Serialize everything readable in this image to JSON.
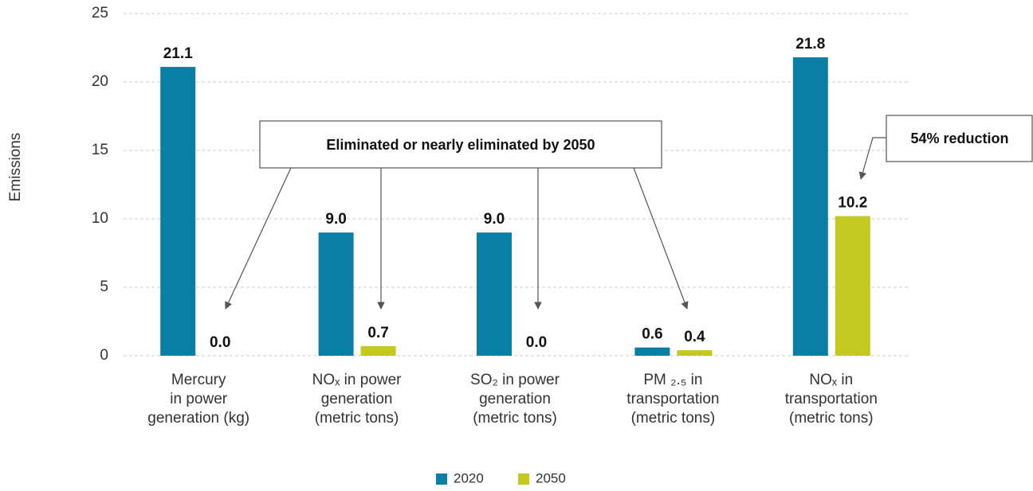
{
  "chart_data": {
    "type": "bar",
    "y_label": "Emissions",
    "categories": [
      [
        "Mercury",
        "in power",
        "generation (kg)"
      ],
      [
        "NOₓ in power",
        "generation",
        "(metric tons)"
      ],
      [
        "SO₂ in power",
        "generation",
        "(metric tons)"
      ],
      [
        "PM ₂.₅ in",
        "transportation",
        "(metric tons)"
      ],
      [
        "NOₓ in",
        "transportation",
        "(metric tons)"
      ]
    ],
    "series": [
      {
        "name": "2020",
        "color": "#0a7ea4",
        "values": [
          21.1,
          9.0,
          9.0,
          0.6,
          21.8
        ],
        "value_labels": [
          "21.1",
          "9.0",
          "9.0",
          "0.6",
          "21.8"
        ]
      },
      {
        "name": "2050",
        "color": "#c3c920",
        "values": [
          0.0,
          0.7,
          0.0,
          0.4,
          10.2
        ],
        "value_labels": [
          "0.0",
          "0.7",
          "0.0",
          "0.4",
          "10.2"
        ]
      }
    ],
    "ylim": [
      0,
      25
    ],
    "yticks": [
      0,
      5,
      10,
      15,
      20,
      25
    ],
    "grid": true,
    "legend": "bottom",
    "annotations": [
      "Eliminated or nearly eliminated by 2050",
      "54% reduction"
    ]
  }
}
